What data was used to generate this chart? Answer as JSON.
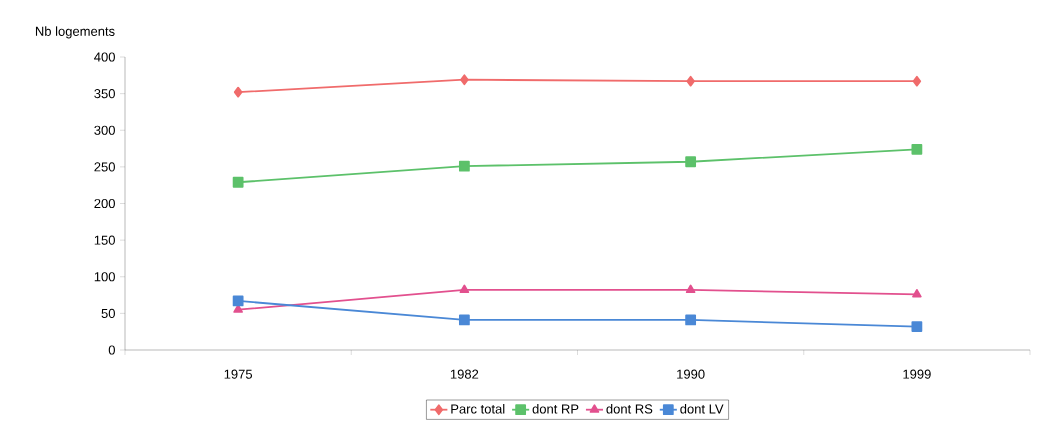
{
  "chart_data": {
    "type": "line",
    "ylabel": "Nb logements",
    "categories": [
      "1975",
      "1982",
      "1990",
      "1999"
    ],
    "series": [
      {
        "name": "Parc total",
        "color": "#f06b6b",
        "marker": "diamond",
        "values": [
          352,
          369,
          367,
          367
        ]
      },
      {
        "name": "dont RP",
        "color": "#5cc16a",
        "marker": "square",
        "values": [
          229,
          251,
          257,
          274
        ]
      },
      {
        "name": "dont RS",
        "color": "#e2508e",
        "marker": "triangle",
        "values": [
          55,
          82,
          82,
          76
        ]
      },
      {
        "name": "dont LV",
        "color": "#4a88d6",
        "marker": "square",
        "values": [
          67,
          41,
          41,
          32
        ]
      }
    ],
    "ylim": [
      0,
      400
    ],
    "yticks": [
      0,
      50,
      100,
      150,
      200,
      250,
      300,
      350,
      400
    ],
    "legend": "bottom",
    "line_style": "solid",
    "grid": false
  }
}
